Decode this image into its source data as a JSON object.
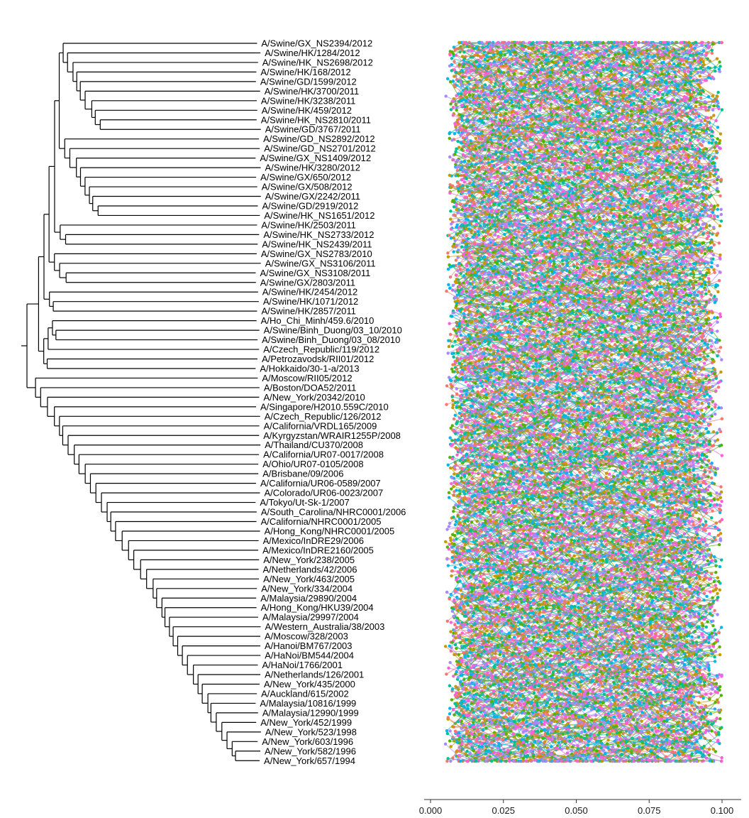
{
  "chart_data": {
    "type": "phylogenetic-tree-with-genome-comparison",
    "tips": [
      "A/Swine/GX_NS2394/2012",
      "A/Swine/HK/1284/2012",
      "A/Swine/HK_NS2698/2012",
      "A/Swine/HK/168/2012",
      "A/Swine/GD/1599/2012",
      "A/Swine/HK/3700/2011",
      "A/Swine/HK/3238/2011",
      "A/Swine/HK/459/2012",
      "A/Swine/HK_NS2810/2011",
      "A/Swine/GD/3767/2011",
      "A/Swine/GD_NS2892/2012",
      "A/Swine/GD_NS2701/2012",
      "A/Swine/GX_NS1409/2012",
      "A/Swine/HK/3280/2012",
      "A/Swine/GX/650/2012",
      "A/Swine/GX/508/2012",
      "A/Swine/GX/2242/2011",
      "A/Swine/GD/2919/2012",
      "A/Swine/HK_NS1651/2012",
      "A/Swine/HK/2503/2011",
      "A/Swine/HK_NS2733/2012",
      "A/Swine/HK_NS2439/2011",
      "A/Swine/GX_NS2783/2010",
      "A/Swine/GX_NS3106/2011",
      "A/Swine/GX_NS3108/2011",
      "A/Swine/GX/2803/2011",
      "A/Swine/HK/2454/2012",
      "A/Swine/HK/1071/2012",
      "A/Swine/HK/2857/2011",
      "A/Ho_Chi_Minh/459.6/2010",
      "A/Swine/Binh_Duong/03_10/2010",
      "A/Swine/Binh_Duong/03_08/2010",
      "A/Czech_Republic/119/2012",
      "A/Petrozavodsk/RII01/2012",
      "A/Hokkaido/30-1-a/2013",
      "A/Moscow/RII05/2012",
      "A/Boston/DOA52/2011",
      "A/New_York/20342/2010",
      "A/Singapore/H2010.559C/2010",
      "A/Czech_Republic/126/2012",
      "A/California/VRDL165/2009",
      "A/Kyrgyzstan/WRAIR1255P/2008",
      "A/Thailand/CU370/2008",
      "A/California/UR07-0017/2008",
      "A/Ohio/UR07-0105/2008",
      "A/Brisbane/09/2006",
      "A/California/UR06-0589/2007",
      "A/Colorado/UR06-0023/2007",
      "A/Tokyo/Ut-Sk-1/2007",
      "A/South_Carolina/NHRC0001/2006",
      "A/California/NHRC0001/2005",
      "A/Hong_Kong/NHRC0001/2005",
      "A/Mexico/InDRE29/2006",
      "A/Mexico/InDRE2160/2005",
      "A/New_York/238/2005",
      "A/Netherlands/42/2006",
      "A/New_York/463/2005",
      "A/New_York/334/2004",
      "A/Malaysia/29890/2004",
      "A/Hong_Kong/HKU39/2004",
      "A/Malaysia/29997/2004",
      "A/Western_Australia/38/2003",
      "A/Moscow/328/2003",
      "A/Hanoi/BM767/2003",
      "A/HaNoi/BM544/2004",
      "A/HaNoi/1766/2001",
      "A/Netherlands/126/2001",
      "A/New_York/435/2000",
      "A/Auckland/615/2002",
      "A/Malaysia/10816/1999",
      "A/Malaysia/12990/1999",
      "A/New_York/452/1999",
      "A/New_York/523/1998",
      "A/New_York/603/1996",
      "A/New_York/582/1996",
      "A/New_York/657/1994"
    ],
    "x_axis": {
      "ticks": [
        0,
        0.025,
        0.05,
        0.075,
        0.1
      ],
      "tick_labels": [
        "0.000",
        "0.025",
        "0.050",
        "0.075",
        "0.100"
      ],
      "range": [
        -0.003,
        0.105
      ]
    },
    "segment_colors": [
      "#F8766D",
      "#C49A00",
      "#53B400",
      "#00C094",
      "#00B6EB",
      "#A58AFF",
      "#FB61D7"
    ],
    "grid": false,
    "legend": "none"
  }
}
